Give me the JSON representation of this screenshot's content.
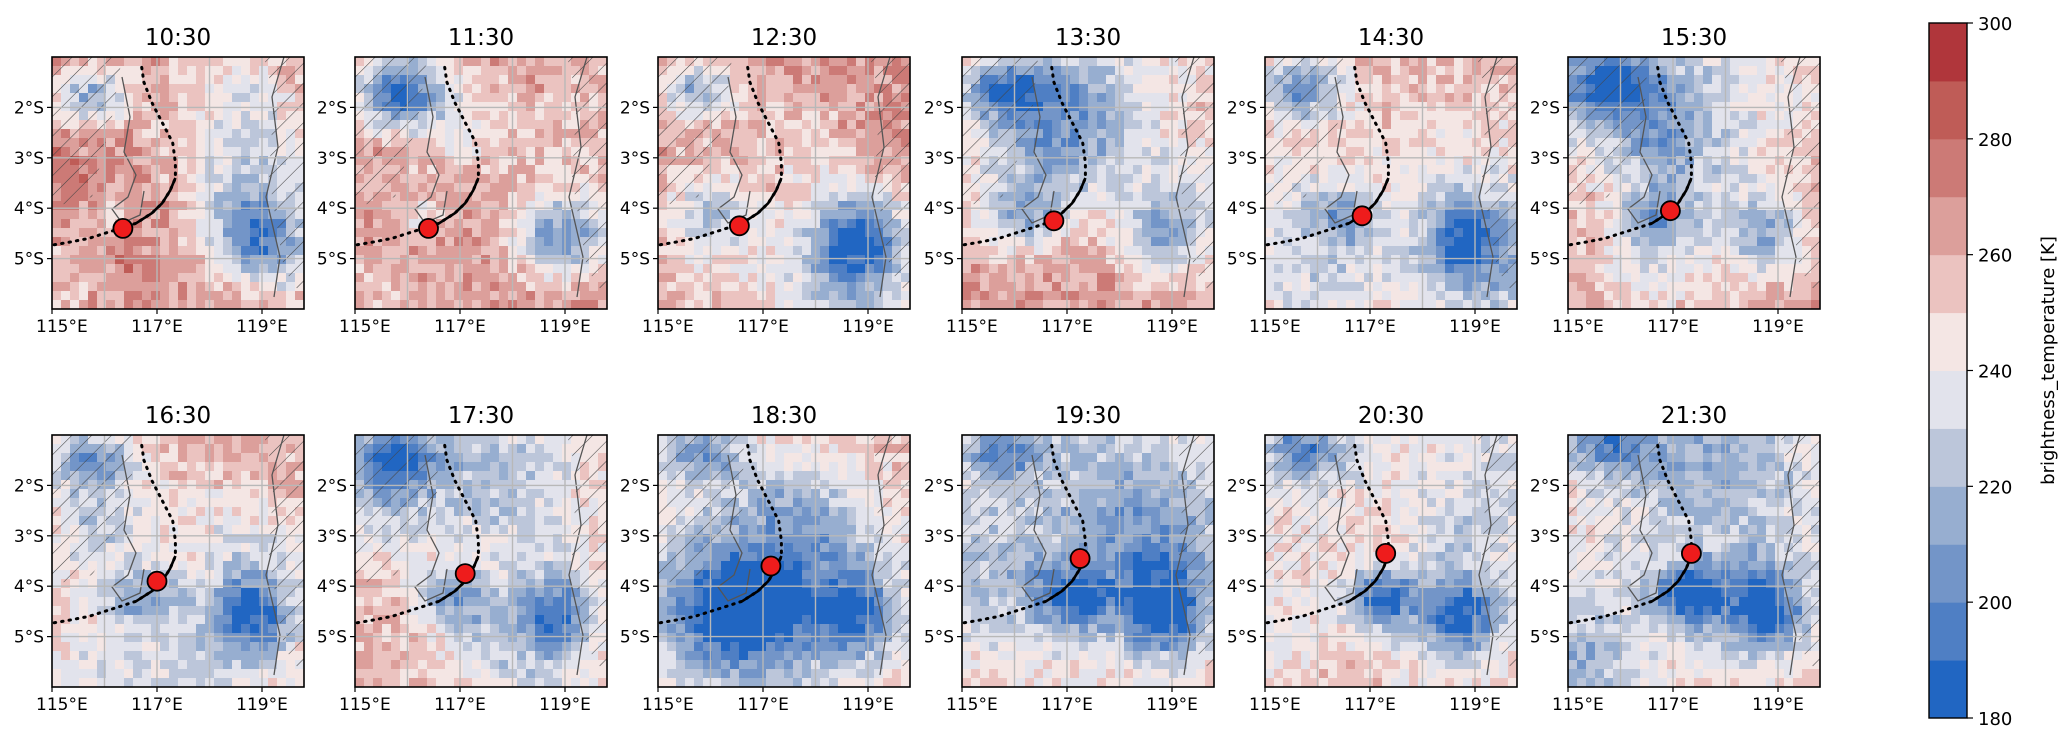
{
  "chart_data": {
    "type": "heatmap",
    "description_variable": "brightness_temperature [K]",
    "panels": [
      {
        "title": "10:30",
        "marker": {
          "lon": 116.35,
          "lat": -4.4
        }
      },
      {
        "title": "11:30",
        "marker": {
          "lon": 116.4,
          "lat": -4.4
        }
      },
      {
        "title": "12:30",
        "marker": {
          "lon": 116.55,
          "lat": -4.35
        }
      },
      {
        "title": "13:30",
        "marker": {
          "lon": 116.75,
          "lat": -4.25
        }
      },
      {
        "title": "14:30",
        "marker": {
          "lon": 116.85,
          "lat": -4.15
        }
      },
      {
        "title": "15:30",
        "marker": {
          "lon": 116.95,
          "lat": -4.05
        }
      },
      {
        "title": "16:30",
        "marker": {
          "lon": 117.0,
          "lat": -3.9
        }
      },
      {
        "title": "17:30",
        "marker": {
          "lon": 117.1,
          "lat": -3.75
        }
      },
      {
        "title": "18:30",
        "marker": {
          "lon": 117.15,
          "lat": -3.6
        }
      },
      {
        "title": "19:30",
        "marker": {
          "lon": 117.25,
          "lat": -3.45
        }
      },
      {
        "title": "20:30",
        "marker": {
          "lon": 117.3,
          "lat": -3.35
        }
      },
      {
        "title": "21:30",
        "marker": {
          "lon": 117.35,
          "lat": -3.35
        }
      }
    ],
    "xaxis": {
      "ticks": [
        115,
        117,
        119
      ],
      "tick_labels": [
        "115°E",
        "117°E",
        "119°E"
      ],
      "range": [
        115,
        119.8
      ]
    },
    "yaxis": {
      "ticks": [
        -2,
        -3,
        -4,
        -5
      ],
      "tick_labels": [
        "2°S",
        "3°S",
        "4°S",
        "5°S"
      ],
      "range": [
        -6,
        -1
      ]
    },
    "grid": true,
    "colorbar": {
      "label": "brightness_temperature [K]",
      "range": [
        180,
        300
      ],
      "ticks": [
        180,
        200,
        220,
        240,
        260,
        280,
        300
      ],
      "tick_labels": [
        "180",
        "200",
        "220",
        "240",
        "260",
        "280",
        "300"
      ],
      "levels": [
        180,
        190,
        200,
        210,
        220,
        230,
        240,
        250,
        260,
        270,
        280,
        290,
        300
      ],
      "colors": [
        "#2166c2",
        "#4f7fc4",
        "#7395c8",
        "#97aed0",
        "#bcc6da",
        "#e2e3ec",
        "#f4e6e4",
        "#ebc3c0",
        "#dc9f9b",
        "#cc7a76",
        "#bf5c57",
        "#b0363b"
      ]
    },
    "track": {
      "lon": [
        114.9,
        115.3,
        115.7,
        116.0,
        116.3,
        116.6,
        116.9,
        117.1,
        117.25,
        117.35,
        117.35,
        117.3,
        117.1,
        116.9,
        116.75,
        116.7
      ],
      "lat": [
        -4.75,
        -4.68,
        -4.6,
        -4.5,
        -4.4,
        -4.3,
        -4.1,
        -3.9,
        -3.65,
        -3.4,
        -3.1,
        -2.7,
        -2.3,
        -1.9,
        -1.5,
        -1.15
      ]
    }
  }
}
